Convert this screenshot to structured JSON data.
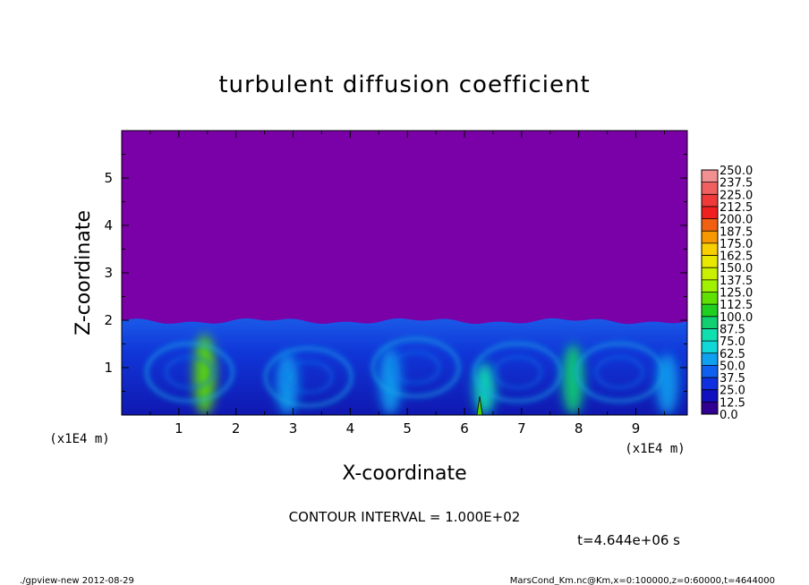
{
  "chart_data": {
    "type": "heatmap",
    "title": "turbulent diffusion coefficient",
    "xlabel": "X-coordinate",
    "ylabel": "Z-coordinate",
    "x_unit": "(x1E4 m)",
    "y_unit": "(x1E4 m)",
    "xlim": [
      0,
      9.9
    ],
    "ylim": [
      0,
      6
    ],
    "x_ticks": [
      1,
      2,
      3,
      4,
      5,
      6,
      7,
      8,
      9
    ],
    "y_ticks": [
      1,
      2,
      3,
      4,
      5
    ],
    "upper_value": 0.0,
    "boundary_layer_top": 2.0,
    "plumes": [
      {
        "x": 1.45,
        "z_top": 1.7,
        "value": 115
      },
      {
        "x": 2.9,
        "z_top": 1.3,
        "value": 60
      },
      {
        "x": 4.7,
        "z_top": 1.4,
        "value": 60
      },
      {
        "x": 6.35,
        "z_top": 1.1,
        "value": 75
      },
      {
        "x": 7.9,
        "z_top": 1.5,
        "value": 95
      },
      {
        "x": 9.55,
        "z_top": 1.3,
        "value": 60
      }
    ],
    "colorbar": {
      "levels": [
        "250.0",
        "237.5",
        "225.0",
        "212.5",
        "200.0",
        "187.5",
        "175.0",
        "162.5",
        "150.0",
        "137.5",
        "125.0",
        "112.5",
        "100.0",
        "87.5",
        "75.0",
        "62.5",
        "50.0",
        "37.5",
        "25.0",
        "12.5",
        "0.0"
      ],
      "colors": [
        "#f09090",
        "#f06060",
        "#f03a3a",
        "#f02020",
        "#f06010",
        "#f89800",
        "#f8d000",
        "#e8e800",
        "#c8f000",
        "#a0f000",
        "#60e000",
        "#20d020",
        "#10d070",
        "#10e0b0",
        "#10d8d8",
        "#10a0f0",
        "#1060f0",
        "#1030e0",
        "#1010c0",
        "#300090"
      ]
    },
    "contour_interval": "CONTOUR INTERVAL = 1.000E+02",
    "time_label": "t=4.644e+06 s",
    "footer_left": "./gpview-new   2012-08-29",
    "footer_right": "MarsCond_Km.nc@Km,x=0:100000,z=0:60000,t=4644000"
  }
}
